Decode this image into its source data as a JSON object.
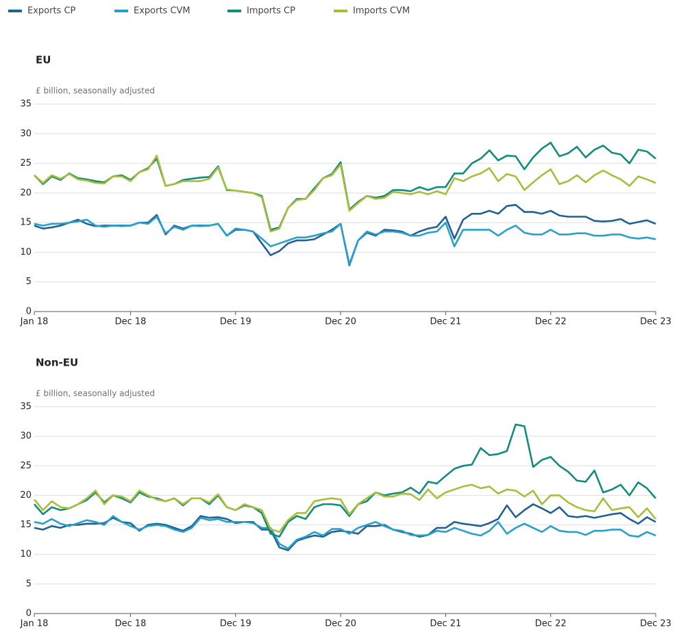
{
  "chart_data": [
    {
      "type": "line",
      "title": "EU",
      "y_label": "£ billion, seasonally adjusted",
      "categories": [
        "Jan 18",
        null,
        null,
        null,
        null,
        null,
        null,
        null,
        null,
        null,
        null,
        "Dec 18",
        null,
        null,
        null,
        null,
        null,
        null,
        null,
        null,
        null,
        null,
        null,
        "Dec 19",
        null,
        null,
        null,
        null,
        null,
        null,
        null,
        null,
        null,
        null,
        null,
        "Dec 20",
        null,
        null,
        null,
        null,
        null,
        null,
        null,
        null,
        null,
        null,
        null,
        "Dec 21",
        null,
        null,
        null,
        null,
        null,
        null,
        null,
        null,
        null,
        null,
        null,
        "Dec 22",
        null,
        null,
        null,
        null,
        null,
        null,
        null,
        null,
        null,
        null,
        null,
        "Dec 23"
      ],
      "ylim": [
        0,
        35
      ],
      "yticks": [
        0,
        5,
        10,
        15,
        20,
        25,
        30,
        35
      ],
      "grid": true,
      "series": [
        {
          "name": "Exports CP",
          "color": "#206095",
          "values": [
            14.5,
            14,
            14.2,
            14.5,
            15,
            15.5,
            14.8,
            14.4,
            14.5,
            14.5,
            14.5,
            14.5,
            15,
            15,
            16.3,
            13,
            14.5,
            14,
            14.5,
            14.5,
            14.5,
            14.8,
            12.8,
            13.8,
            13.8,
            13.5,
            11.5,
            9.5,
            10.2,
            11.5,
            12,
            12,
            12.2,
            13,
            13.8,
            14.8,
            7.8,
            12,
            13.3,
            12.8,
            13.8,
            13.7,
            13.5,
            12.8,
            13.5,
            14,
            14.3,
            16,
            12.3,
            15.5,
            16.5,
            16.5,
            17,
            16.5,
            17.8,
            18,
            16.8,
            16.8,
            16.5,
            17,
            16.2,
            16,
            16,
            16,
            15.3,
            15.2,
            15.3,
            15.6,
            14.8,
            15.1,
            15.4,
            14.8
          ]
        },
        {
          "name": "Exports CVM",
          "color": "#27a0cc",
          "values": [
            14.8,
            14.5,
            14.8,
            14.8,
            15,
            15.2,
            15.5,
            14.5,
            14.3,
            14.5,
            14.4,
            14.5,
            15,
            14.8,
            16,
            13.2,
            14.3,
            13.8,
            14.5,
            14.4,
            14.5,
            14.8,
            12.8,
            14,
            13.8,
            13.5,
            12.3,
            11,
            11.5,
            12,
            12.5,
            12.5,
            12.8,
            13.2,
            13.5,
            14.8,
            8,
            12,
            13.5,
            13,
            13.5,
            13.5,
            13.3,
            12.8,
            12.8,
            13.3,
            13.5,
            15,
            11,
            13.8,
            13.8,
            13.8,
            13.8,
            12.8,
            13.8,
            14.5,
            13.3,
            13,
            13,
            13.8,
            13,
            13,
            13.2,
            13.2,
            12.8,
            12.8,
            13,
            13,
            12.5,
            12.3,
            12.5,
            12.2
          ]
        },
        {
          "name": "Imports CP",
          "color": "#118c7b",
          "values": [
            23,
            21.5,
            22.8,
            22.2,
            23.3,
            22.5,
            22.3,
            22,
            21.8,
            22.8,
            23,
            22.2,
            23.5,
            24.2,
            25.8,
            21.2,
            21.5,
            22.2,
            22.4,
            22.6,
            22.7,
            24.5,
            20.5,
            20.4,
            20.2,
            20,
            19.5,
            13.8,
            14.2,
            17.5,
            19,
            19,
            20.8,
            22.5,
            23.2,
            25.2,
            17.2,
            18.5,
            19.5,
            19.2,
            19.5,
            20.5,
            20.5,
            20.3,
            21,
            20.5,
            21,
            21,
            23.3,
            23.3,
            25,
            25.8,
            27.2,
            25.5,
            26.3,
            26.2,
            24,
            26,
            27.5,
            28.5,
            26.2,
            26.7,
            27.8,
            26,
            27.3,
            28,
            26.8,
            26.5,
            25,
            27.3,
            27,
            25.8
          ]
        },
        {
          "name": "Imports CVM",
          "color": "#a8bd3a",
          "values": [
            23,
            21.7,
            23,
            22.4,
            23.2,
            22.3,
            22.1,
            21.7,
            21.6,
            22.8,
            22.8,
            22,
            23.5,
            24,
            26.3,
            21.2,
            21.5,
            22,
            22,
            22,
            22.4,
            24.3,
            20.6,
            20.4,
            20.2,
            20,
            19.3,
            13.5,
            14,
            17.5,
            18.8,
            19,
            20.5,
            22.5,
            23,
            24.8,
            17,
            18.3,
            19.5,
            19,
            19.2,
            20.2,
            20,
            19.8,
            20.2,
            19.8,
            20.3,
            19.8,
            22.5,
            22,
            22.8,
            23.3,
            24.2,
            22,
            23.2,
            22.8,
            20.5,
            21.8,
            23,
            24,
            21.5,
            22,
            23,
            21.8,
            23,
            23.8,
            23,
            22.3,
            21.2,
            22.8,
            22.3,
            21.7
          ]
        }
      ]
    },
    {
      "type": "line",
      "title": "Non-EU",
      "y_label": "£ billion, seasonally adjusted",
      "categories": [
        "Jan 18",
        null,
        null,
        null,
        null,
        null,
        null,
        null,
        null,
        null,
        null,
        "Dec 18",
        null,
        null,
        null,
        null,
        null,
        null,
        null,
        null,
        null,
        null,
        null,
        "Dec 19",
        null,
        null,
        null,
        null,
        null,
        null,
        null,
        null,
        null,
        null,
        null,
        "Dec 20",
        null,
        null,
        null,
        null,
        null,
        null,
        null,
        null,
        null,
        null,
        null,
        "Dec 21",
        null,
        null,
        null,
        null,
        null,
        null,
        null,
        null,
        null,
        null,
        null,
        "Dec 22",
        null,
        null,
        null,
        null,
        null,
        null,
        null,
        null,
        null,
        null,
        null,
        "Dec 23"
      ],
      "ylim": [
        0,
        35
      ],
      "yticks": [
        0,
        5,
        10,
        15,
        20,
        25,
        30,
        35
      ],
      "grid": true,
      "series": [
        {
          "values": [
            14.5,
            14.2,
            14.8,
            14.5,
            15,
            15,
            15.2,
            15.2,
            15.3,
            16.2,
            15.5,
            15.3,
            14,
            15,
            15.2,
            15,
            14.5,
            14,
            14.8,
            16.5,
            16.2,
            16.3,
            16,
            15.3,
            15.5,
            15.5,
            14.2,
            14.2,
            11.2,
            10.7,
            12.3,
            12.8,
            13.2,
            13,
            13.8,
            14,
            13.8,
            13.5,
            14.8,
            14.8,
            15,
            14.2,
            13.8,
            13.5,
            13,
            13.3,
            14.5,
            14.5,
            15.5,
            15.2,
            15,
            14.8,
            15.3,
            16,
            18.3,
            16.3,
            17.5,
            18.5,
            17.8,
            17,
            18,
            16.5,
            16.3,
            16.5,
            16.2,
            16.5,
            16.8,
            17,
            16,
            15.2,
            16.3,
            15.5
          ]
        },
        {
          "values": [
            15.5,
            15.2,
            16,
            15.2,
            14.8,
            15.3,
            15.8,
            15.5,
            15,
            16.5,
            15.5,
            14.8,
            14.2,
            14.8,
            15,
            14.8,
            14.2,
            13.8,
            14.5,
            16.2,
            15.8,
            16,
            15.5,
            15.5,
            15.5,
            15.3,
            14.5,
            14.5,
            11.8,
            11,
            12.5,
            13,
            13.8,
            13.2,
            14.3,
            14.3,
            13.5,
            14.5,
            15,
            15.5,
            14.8,
            14.2,
            14,
            13.3,
            13.2,
            13.3,
            14,
            13.8,
            14.5,
            14,
            13.5,
            13.2,
            14,
            15.5,
            13.5,
            14.5,
            15.2,
            14.5,
            13.8,
            14.8,
            14,
            13.8,
            13.8,
            13.3,
            14,
            14,
            14.2,
            14.2,
            13.2,
            13,
            13.8,
            13.2
          ]
        },
        {
          "values": [
            18.5,
            16.8,
            18,
            17.5,
            17.8,
            18.5,
            19.2,
            20.5,
            18.8,
            20,
            19.5,
            18.8,
            20.5,
            19.8,
            19.5,
            19,
            19.5,
            18.3,
            19.5,
            19.5,
            18.5,
            20,
            18,
            17.5,
            18.3,
            18,
            17,
            13.5,
            13,
            15.5,
            16.5,
            16,
            18,
            18.5,
            18.5,
            18.3,
            16.5,
            18.5,
            19,
            20.5,
            20,
            20.3,
            20.5,
            21.3,
            20.3,
            22.3,
            22,
            23.3,
            24.5,
            25,
            25.2,
            28,
            26.8,
            27,
            27.5,
            32,
            31.7,
            24.8,
            26,
            26.5,
            25,
            24,
            22.5,
            22.3,
            24.2,
            20.5,
            21,
            21.8,
            20,
            22.2,
            21.2,
            19.5
          ]
        },
        {
          "values": [
            19.3,
            17.5,
            19,
            18,
            17.8,
            18.5,
            19.5,
            20.8,
            18.5,
            20,
            19.8,
            19,
            20.8,
            20,
            19.3,
            19,
            19.5,
            18.5,
            19.5,
            19.5,
            18.8,
            20.2,
            18,
            17.5,
            18.5,
            18,
            17.5,
            14.3,
            13.8,
            15.8,
            17,
            17,
            19,
            19.3,
            19.5,
            19.3,
            16.8,
            18.5,
            19.5,
            20.5,
            19.8,
            19.8,
            20.3,
            20.2,
            19.2,
            21,
            19.5,
            20.5,
            21,
            21.5,
            21.8,
            21.2,
            21.5,
            20.3,
            21,
            20.8,
            19.8,
            20.8,
            18.5,
            20,
            20,
            18.8,
            18,
            17.5,
            17.3,
            19.5,
            17.5,
            17.8,
            18,
            16.3,
            17.8,
            16
          ]
        }
      ]
    }
  ]
}
